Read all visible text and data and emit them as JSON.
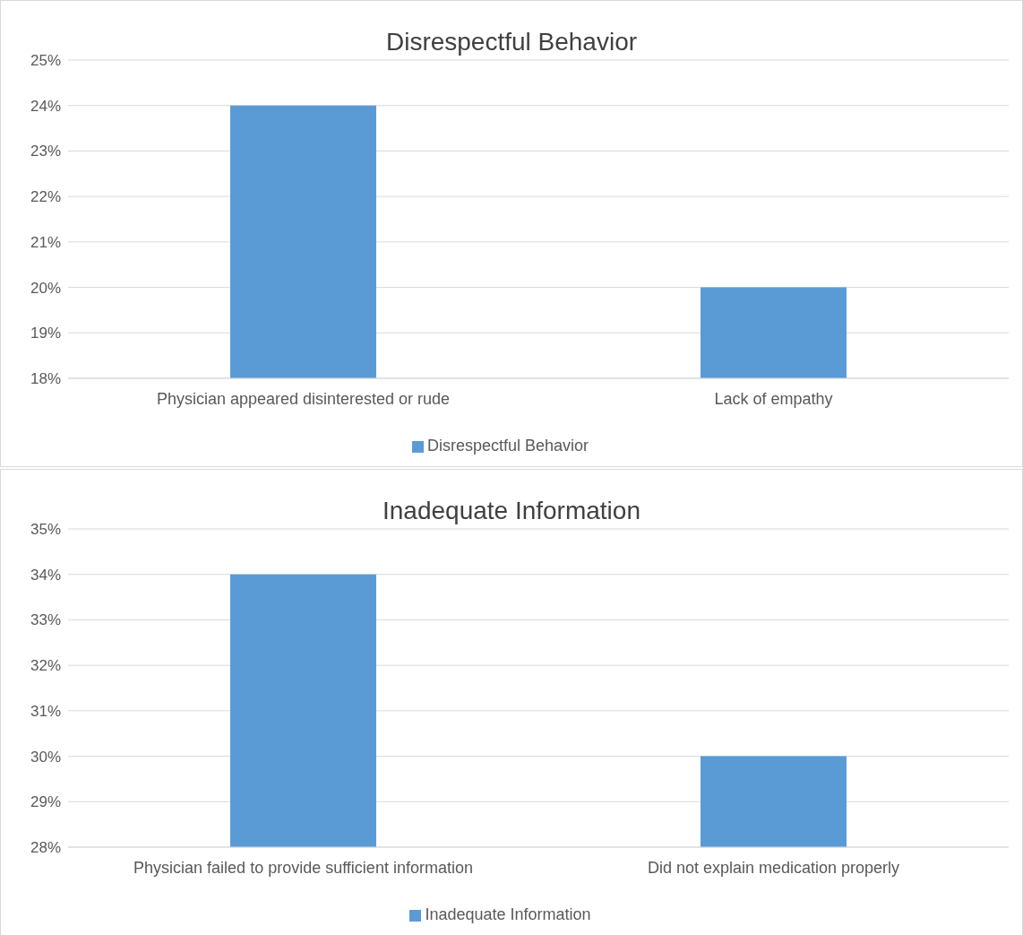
{
  "chart_data": [
    {
      "type": "bar",
      "title": "Disrespectful Behavior",
      "categories": [
        "Physician appeared disinterested or rude",
        "Lack of empathy"
      ],
      "series": [
        {
          "name": "Disrespectful Behavior",
          "color": "#5b9bd5",
          "values": [
            24,
            20
          ]
        }
      ],
      "ylim": [
        18,
        25
      ],
      "yticks": [
        {
          "value": 18,
          "label": "18%"
        },
        {
          "value": 19,
          "label": "19%"
        },
        {
          "value": 20,
          "label": "20%"
        },
        {
          "value": 21,
          "label": "21%"
        },
        {
          "value": 22,
          "label": "22%"
        },
        {
          "value": 23,
          "label": "23%"
        },
        {
          "value": 24,
          "label": "24%"
        },
        {
          "value": 25,
          "label": "25%"
        }
      ],
      "grid": "y",
      "legend": "bottom"
    },
    {
      "type": "bar",
      "title": "Inadequate Information",
      "categories": [
        "Physician failed to provide sufficient information",
        "Did not explain medication properly"
      ],
      "series": [
        {
          "name": "Inadequate Information",
          "color": "#5b9bd5",
          "values": [
            34,
            30
          ]
        }
      ],
      "ylim": [
        28,
        35
      ],
      "yticks": [
        {
          "value": 28,
          "label": "28%"
        },
        {
          "value": 29,
          "label": "29%"
        },
        {
          "value": 30,
          "label": "30%"
        },
        {
          "value": 31,
          "label": "31%"
        },
        {
          "value": 32,
          "label": "32%"
        },
        {
          "value": 33,
          "label": "33%"
        },
        {
          "value": 34,
          "label": "34%"
        },
        {
          "value": 35,
          "label": "35%"
        }
      ],
      "grid": "y",
      "legend": "bottom"
    }
  ]
}
